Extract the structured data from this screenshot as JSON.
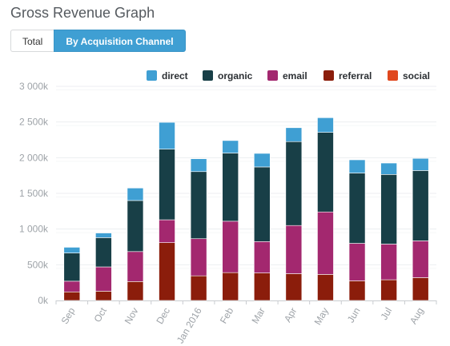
{
  "title": "Gross Revenue Graph",
  "toggle": {
    "total_label": "Total",
    "channel_label": "By Acquisition Channel",
    "active": "By Acquisition Channel"
  },
  "colors": {
    "direct": "#3f9fd3",
    "organic": "#183f47",
    "email": "#a3286f",
    "referral": "#8b1d0b",
    "social": "#e0481e",
    "grid": "#eceef0",
    "axis": "#c9ccd0"
  },
  "chart_data": {
    "type": "bar",
    "stacked": true,
    "categories": [
      "Sep",
      "Oct",
      "Nov",
      "Dec",
      "Jan 2016",
      "Feb",
      "Mar",
      "Apr",
      "May",
      "Jun",
      "Jul",
      "Aug"
    ],
    "series": [
      {
        "name": "referral",
        "values": [
          120,
          130,
          265,
          810,
          345,
          390,
          385,
          375,
          365,
          275,
          290,
          320
        ]
      },
      {
        "name": "email",
        "values": [
          150,
          340,
          420,
          320,
          520,
          720,
          440,
          675,
          875,
          525,
          500,
          515
        ]
      },
      {
        "name": "organic",
        "values": [
          395,
          410,
          715,
          990,
          940,
          955,
          1045,
          1175,
          1115,
          985,
          975,
          985
        ]
      },
      {
        "name": "direct",
        "values": [
          80,
          65,
          175,
          375,
          180,
          175,
          190,
          195,
          205,
          185,
          160,
          170
        ]
      },
      {
        "name": "social",
        "values": [
          0,
          0,
          0,
          0,
          0,
          0,
          0,
          0,
          0,
          0,
          0,
          0
        ]
      }
    ],
    "legend_order": [
      "direct",
      "organic",
      "email",
      "referral",
      "social"
    ],
    "y_ticks": [
      "0k",
      "500k",
      "1 000k",
      "1 500k",
      "2 000k",
      "2 500k",
      "3 000k"
    ],
    "ylim": [
      0,
      3000
    ],
    "legend_position": "top-right",
    "grid": true,
    "x_tick_rotation": -60
  }
}
